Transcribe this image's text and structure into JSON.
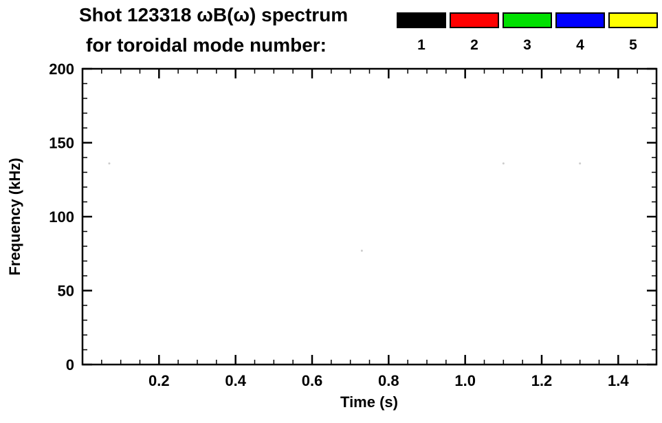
{
  "title": {
    "line1": "Shot 123318 ωB(ω) spectrum",
    "line2": "for toroidal mode number:"
  },
  "legend": {
    "entries": [
      {
        "label": "1",
        "color": "#000000"
      },
      {
        "label": "2",
        "color": "#ff0000"
      },
      {
        "label": "3",
        "color": "#00e000"
      },
      {
        "label": "4",
        "color": "#0000ff"
      },
      {
        "label": "5",
        "color": "#ffff00"
      }
    ]
  },
  "chart_data": {
    "type": "scatter",
    "title": "Shot 123318 ωB(ω) spectrum for toroidal mode number:",
    "xlabel": "Time (s)",
    "ylabel": "Frequency (kHz)",
    "xlim": [
      0.0,
      1.5
    ],
    "ylim": [
      0,
      200
    ],
    "x_major_ticks": [
      0.2,
      0.4,
      0.6,
      0.8,
      1.0,
      1.2,
      1.4
    ],
    "x_tick_labels": [
      "0.2",
      "0.4",
      "0.6",
      "0.8",
      "1.0",
      "1.2",
      "1.4"
    ],
    "x_minor_step": 0.05,
    "y_major_ticks": [
      0,
      50,
      100,
      150,
      200
    ],
    "y_tick_labels": [
      "0",
      "50",
      "100",
      "150",
      "200"
    ],
    "y_minor_step": 10,
    "grid": false,
    "legend_position": "top-right",
    "series": [
      {
        "name": "1",
        "color": "#000000",
        "points": []
      },
      {
        "name": "2",
        "color": "#ff0000",
        "points": []
      },
      {
        "name": "3",
        "color": "#00e000",
        "points": []
      },
      {
        "name": "4",
        "color": "#0000ff",
        "points": []
      },
      {
        "name": "5",
        "color": "#ffff00",
        "points": []
      }
    ],
    "faint_points": [
      {
        "x": 0.07,
        "y": 136
      },
      {
        "x": 0.73,
        "y": 77
      },
      {
        "x": 1.1,
        "y": 136
      },
      {
        "x": 1.3,
        "y": 136
      }
    ],
    "faint_point_color": "#cccccc",
    "frame_color": "#000000"
  }
}
